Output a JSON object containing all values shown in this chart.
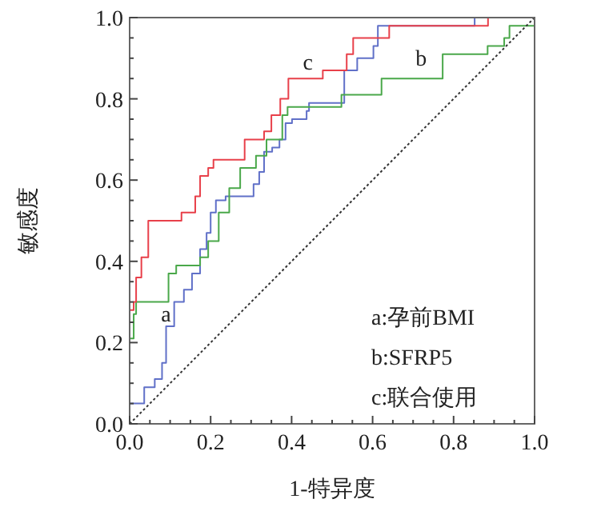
{
  "chart_data": {
    "type": "step",
    "xlabel": "1-特异度",
    "ylabel": "敏感度",
    "xlim": [
      0,
      1
    ],
    "ylim": [
      0,
      1
    ],
    "xticks": [
      {
        "value": 0,
        "label": "0.0"
      },
      {
        "value": 0.2,
        "label": "0.2"
      },
      {
        "value": 0.4,
        "label": "0.4"
      },
      {
        "value": 0.6,
        "label": "0.6"
      },
      {
        "value": 0.8,
        "label": "0.8"
      },
      {
        "value": 1,
        "label": "1.0"
      }
    ],
    "yticks": [
      {
        "value": 0,
        "label": "0.0"
      },
      {
        "value": 0.2,
        "label": "0.2"
      },
      {
        "value": 0.4,
        "label": "0.4"
      },
      {
        "value": 0.6,
        "label": "0.6"
      },
      {
        "value": 0.8,
        "label": "0.8"
      },
      {
        "value": 1,
        "label": "1.0"
      }
    ],
    "grid": false,
    "marker": "none",
    "series": [
      {
        "color": "#6070c8",
        "x": [
          0,
          0,
          0.036,
          0.036,
          0.062,
          0.062,
          0.08,
          0.08,
          0.09,
          0.09,
          0.11,
          0.11,
          0.134,
          0.154,
          0.174,
          0.19,
          0.2,
          0.213,
          0.237,
          0.286,
          0.306,
          0.32,
          0.332,
          0.352,
          0.37,
          0.385,
          0.401,
          0.437,
          0.443,
          0.53,
          0.53,
          0.562,
          0.562,
          0.602,
          0.613,
          0.852,
          0.852,
          1
        ],
        "values": [
          0,
          0.05,
          0.05,
          0.09,
          0.09,
          0.11,
          0.11,
          0.15,
          0.16,
          0.24,
          0.26,
          0.3,
          0.33,
          0.37,
          0.43,
          0.47,
          0.52,
          0.55,
          0.56,
          0.56,
          0.59,
          0.62,
          0.67,
          0.68,
          0.7,
          0.74,
          0.75,
          0.77,
          0.79,
          0.79,
          0.87,
          0.87,
          0.9,
          0.93,
          0.98,
          0.98,
          1,
          1
        ]
      },
      {
        "color": "#4aa84a",
        "x": [
          0,
          0,
          0.01,
          0.016,
          0.082,
          0.096,
          0.115,
          0.167,
          0.174,
          0.194,
          0.22,
          0.246,
          0.273,
          0.312,
          0.338,
          0.377,
          0.39,
          0.523,
          0.523,
          0.622,
          0.622,
          0.74,
          0.773,
          0.878,
          0.884,
          0.925,
          0.938,
          0.99,
          1
        ],
        "values": [
          0,
          0.21,
          0.27,
          0.3,
          0.3,
          0.37,
          0.39,
          0.39,
          0.41,
          0.45,
          0.52,
          0.58,
          0.63,
          0.66,
          0.7,
          0.76,
          0.78,
          0.78,
          0.81,
          0.81,
          0.85,
          0.85,
          0.91,
          0.91,
          0.93,
          0.95,
          0.98,
          0.98,
          1
        ]
      },
      {
        "color": "#e8404a",
        "x": [
          0,
          0,
          0.01,
          0.016,
          0.029,
          0.046,
          0.046,
          0.128,
          0.128,
          0.162,
          0.162,
          0.174,
          0.194,
          0.207,
          0.28,
          0.284,
          0.326,
          0.332,
          0.35,
          0.372,
          0.392,
          0.47,
          0.477,
          0.536,
          0.536,
          0.552,
          0.552,
          0.641,
          0.641,
          0.885,
          0.885,
          1
        ],
        "values": [
          0,
          0.28,
          0.3,
          0.36,
          0.41,
          0.48,
          0.5,
          0.5,
          0.52,
          0.52,
          0.56,
          0.61,
          0.63,
          0.65,
          0.65,
          0.7,
          0.7,
          0.72,
          0.76,
          0.8,
          0.85,
          0.85,
          0.87,
          0.87,
          0.91,
          0.91,
          0.95,
          0.95,
          0.98,
          0.98,
          1,
          1
        ]
      },
      {
        "type": "line",
        "color": "#333333",
        "line_style": "dotted",
        "x": [
          0,
          1
        ],
        "values": [
          0,
          1
        ]
      }
    ],
    "annotations": [
      {
        "text": "a",
        "x": 0.09,
        "y": 0.24
      },
      {
        "text": "b",
        "x": 0.72,
        "y": 0.87
      },
      {
        "text": "c",
        "x": 0.44,
        "y": 0.86
      },
      "a:孕前BMI",
      "b:SFRP5",
      "c:联合使用"
    ]
  }
}
